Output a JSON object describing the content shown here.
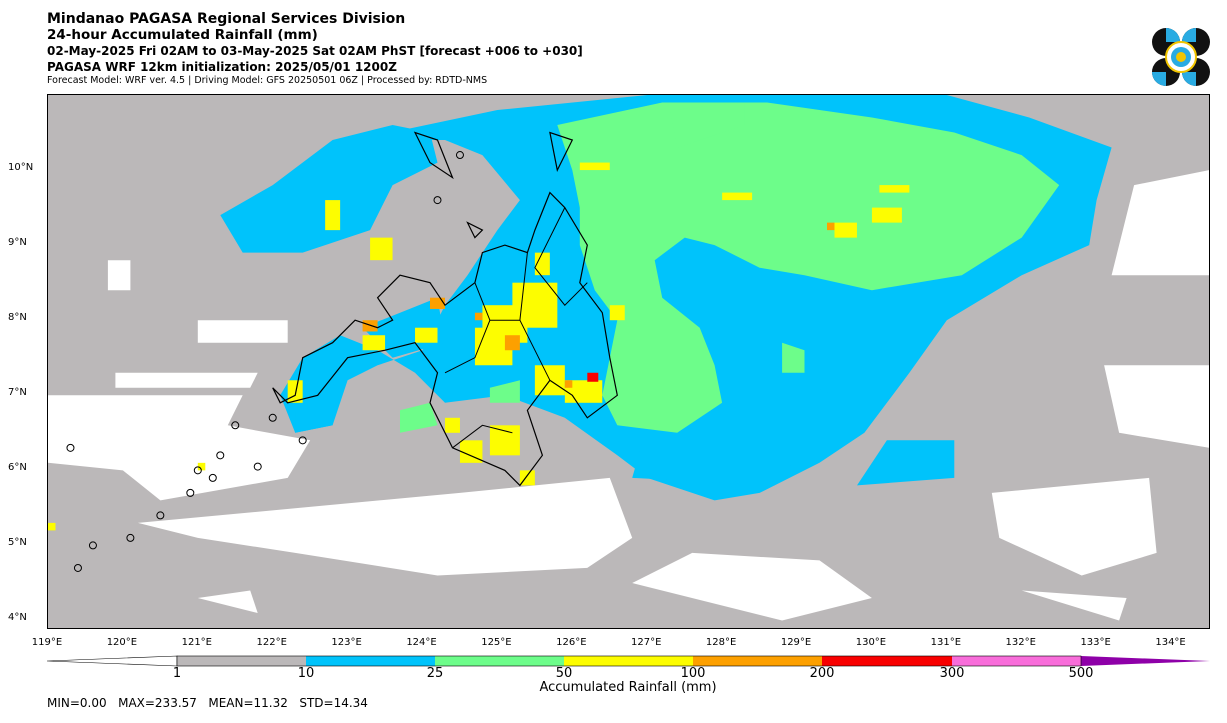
{
  "header": {
    "line1": "Mindanao PAGASA Regional Services Division",
    "line2": "24-hour Accumulated Rainfall (mm)",
    "line3": "02-May-2025 Fri 02AM to 03-May-2025 Sat 02AM PhST [forecast +006 to +030]",
    "line4": "PAGASA WRF 12km initialization: 2025/05/01 1200Z",
    "line5": "Forecast Model: WRF ver. 4.5 | Driving Model: GFS 20250501 06Z | Processed by: RDTD-NMS"
  },
  "map": {
    "lat_ticks": [
      "10°N",
      "9°N",
      "8°N",
      "7°N",
      "6°N",
      "5°N",
      "4°N"
    ],
    "lon_ticks": [
      "119°E",
      "120°E",
      "121°E",
      "122°E",
      "123°E",
      "124°E",
      "125°E",
      "126°E",
      "127°E",
      "128°E",
      "129°E",
      "130°E",
      "131°E",
      "132°E",
      "133°E",
      "134°E"
    ],
    "lon_range": [
      119,
      134.5
    ],
    "lat_range": [
      3.9,
      11
    ]
  },
  "colorbar": {
    "title": "Accumulated Rainfall (mm)",
    "labels": [
      "1",
      "10",
      "25",
      "50",
      "100",
      "200",
      "300",
      "500"
    ],
    "colors": [
      "#bbb8b9",
      "#00c3fb",
      "#6dfd8a",
      "#fdfd00",
      "#fda000",
      "#f80000",
      "#f86dda",
      "#8e00a8"
    ]
  },
  "stats": {
    "text": "MIN=0.00   MAX=233.57   MEAN=11.32   STD=14.34"
  }
}
